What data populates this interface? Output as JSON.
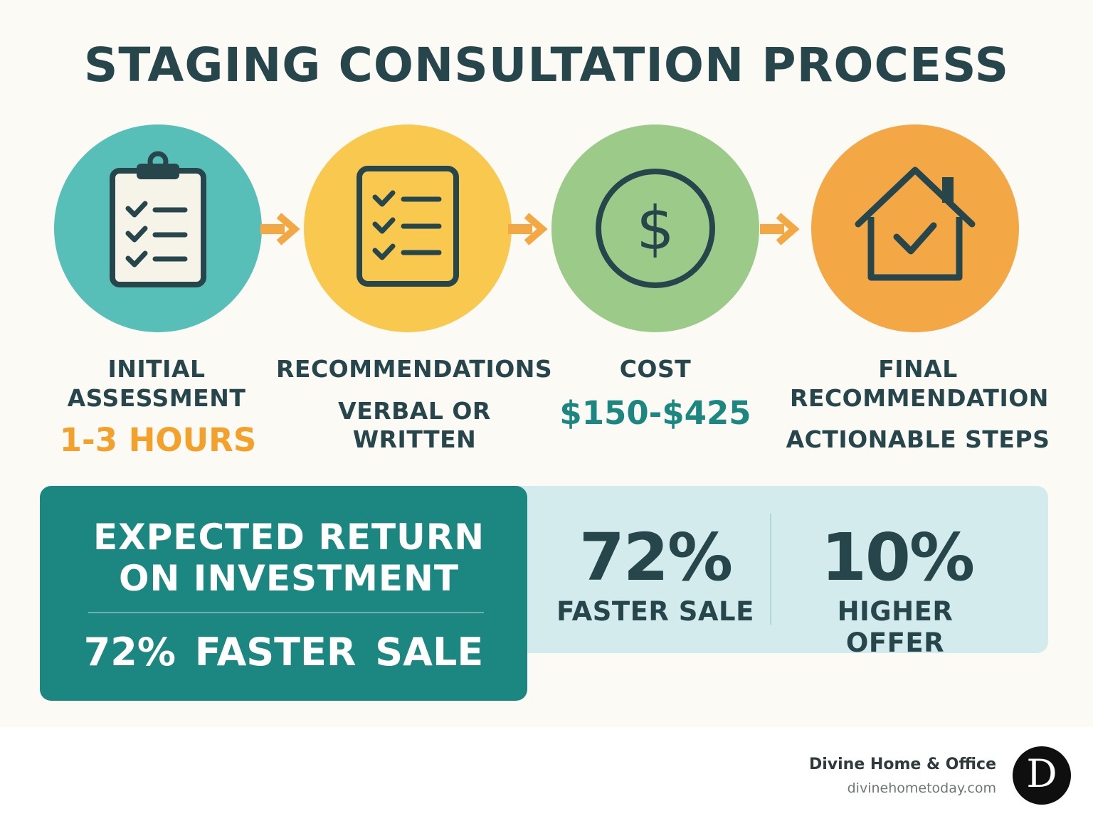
{
  "title": "STAGING CONSULTATION PROCESS",
  "steps": [
    {
      "label": "INITIAL ASSESSMENT",
      "value": "1-3 HOURS",
      "icon": "clipboard-checklist-icon",
      "color": "#57bfb8",
      "value_color": "#f4a12c"
    },
    {
      "label": "RECOMMENDATIONS",
      "sub": "VERBAL OR WRITTEN",
      "icon": "checklist-document-icon",
      "color": "#f8c94e"
    },
    {
      "label": "COST",
      "value": "$150-$425",
      "icon": "dollar-coin-icon",
      "color": "#9ccb89",
      "value_color": "#1c8781"
    },
    {
      "label": "FINAL RECOMMENDATION",
      "sub": "ACTIONABLE STEPS",
      "icon": "house-check-icon",
      "color": "#f3a845"
    }
  ],
  "roi": {
    "title": "EXPECTED RETURN ON INVESTMENT",
    "highlight": "72% FASTER SALE",
    "stats": [
      {
        "value": "72%",
        "label": "FASTER SALE"
      },
      {
        "value": "10%",
        "label": "HIGHER OFFER"
      }
    ]
  },
  "brand": {
    "name": "Divine Home & Office",
    "url": "divinehometoday.com",
    "logo_letter": "D"
  },
  "colors": {
    "dark_text": "#26464c",
    "teal": "#1c8781",
    "arrow": "#f4a844",
    "light_panel": "#d3ebec"
  }
}
